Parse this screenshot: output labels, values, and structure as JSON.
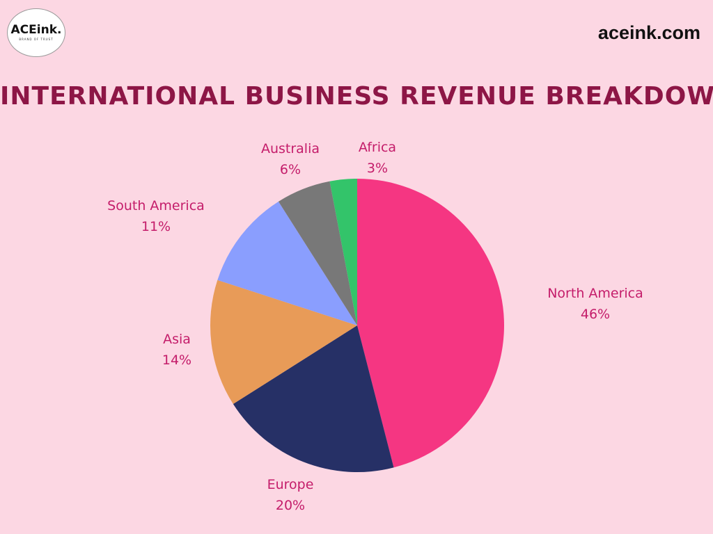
{
  "brand": {
    "logo_name": "ACEink.",
    "logo_tagline": "BRAND OF TRUST",
    "site": "aceink.com"
  },
  "chart_data": {
    "type": "pie",
    "title": "INTERNATIONAL BUSINESS REVENUE BREAKDOWN",
    "categories": [
      "North America",
      "Europe",
      "Asia",
      "South America",
      "Australia",
      "Africa"
    ],
    "values": [
      46,
      20,
      14,
      11,
      6,
      3
    ],
    "labels": [
      "46%",
      "20%",
      "14%",
      "11%",
      "6%",
      "3%"
    ],
    "colors": [
      "#f53682",
      "#263066",
      "#e89b58",
      "#8a9efe",
      "#787878",
      "#33c46a"
    ],
    "start": "12 o'clock, clockwise",
    "legend": "none"
  }
}
